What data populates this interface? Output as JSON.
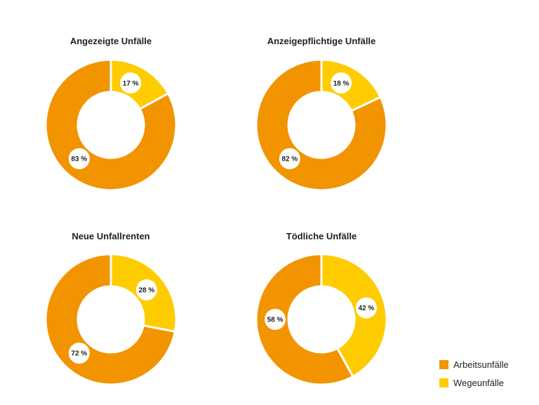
{
  "colors": {
    "arbeit": "#F29400",
    "wege": "#FFCC00"
  },
  "legend": {
    "items": [
      {
        "label": "Arbeitsunfälle",
        "color": "#F29400"
      },
      {
        "label": "Wegeunfälle",
        "color": "#FFCC00"
      }
    ]
  },
  "chart_data": [
    {
      "type": "pie",
      "title": "Angezeigte Unfälle",
      "categories": [
        "Arbeitsunfälle",
        "Wegeunfälle"
      ],
      "values": [
        83,
        17
      ],
      "value_labels": [
        "83 %",
        "17 %"
      ]
    },
    {
      "type": "pie",
      "title": "Anzeigepflichtige Unfälle",
      "categories": [
        "Arbeitsunfälle",
        "Wegeunfälle"
      ],
      "values": [
        82,
        18
      ],
      "value_labels": [
        "82 %",
        "18 %"
      ]
    },
    {
      "type": "pie",
      "title": "Neue Unfallrenten",
      "categories": [
        "Arbeitsunfälle",
        "Wegeunfälle"
      ],
      "values": [
        72,
        28
      ],
      "value_labels": [
        "72 %",
        "28 %"
      ]
    },
    {
      "type": "pie",
      "title": "Tödliche Unfälle",
      "categories": [
        "Arbeitsunfälle",
        "Wegeunfälle"
      ],
      "values": [
        58,
        42
      ],
      "value_labels": [
        "58 %",
        "42 %"
      ]
    }
  ]
}
